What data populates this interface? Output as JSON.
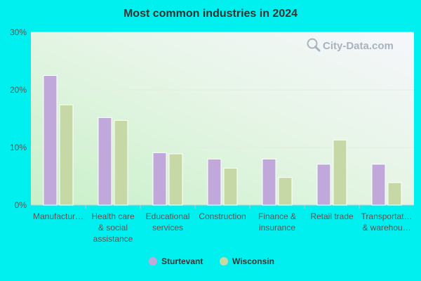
{
  "chart_data": {
    "type": "bar",
    "title": "Most common industries in 2024",
    "categories": [
      [
        "Manufactur…"
      ],
      [
        "Health care",
        "& social",
        "assistance"
      ],
      [
        "Educational",
        "services"
      ],
      [
        "Construction"
      ],
      [
        "Finance &",
        "insurance"
      ],
      [
        "Retail trade"
      ],
      [
        "Transportat…",
        "& warehou…"
      ]
    ],
    "series": [
      {
        "name": "Sturtevant",
        "color": "#c0a8db",
        "values": [
          22.5,
          15.2,
          9.1,
          8.0,
          8.0,
          7.1,
          7.1
        ]
      },
      {
        "name": "Wisconsin",
        "color": "#c5d8a5",
        "values": [
          17.4,
          14.7,
          8.9,
          6.4,
          4.8,
          11.3,
          3.9
        ]
      }
    ],
    "ylim": [
      0,
      30
    ],
    "yticks": [
      0,
      10,
      20,
      30
    ],
    "ytick_suffix": "%",
    "grid": true,
    "legend": "bottom",
    "watermark": "City-Data.com"
  }
}
